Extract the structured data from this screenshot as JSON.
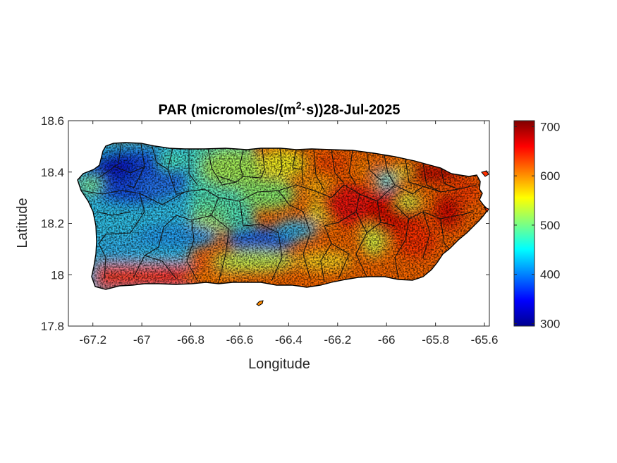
{
  "chart_data": {
    "type": "heatmap",
    "title": {
      "prefix": "PAR (micromoles/(m",
      "superscript": "2",
      "suffix": "·s))28-Jul-2025"
    },
    "xlabel": "Longitude",
    "ylabel": "Latitude",
    "xlim": [
      -67.3,
      -65.58
    ],
    "ylim": [
      17.8,
      18.6
    ],
    "xticks": [
      -67.2,
      -67,
      -66.8,
      -66.6,
      -66.4,
      -66.2,
      -66,
      -65.8,
      -65.6
    ],
    "xtick_labels": [
      "-67.2",
      "-67",
      "-66.8",
      "-66.6",
      "-66.4",
      "-66.2",
      "-66",
      "-65.8",
      "-65.6"
    ],
    "yticks": [
      17.8,
      18,
      18.2,
      18.4,
      18.6
    ],
    "ytick_labels": [
      "17.8",
      "18",
      "18.2",
      "18.4",
      "18.6"
    ],
    "colorbar": {
      "colormap": "jet",
      "range": [
        295,
        712
      ],
      "ticks": [
        300,
        400,
        500,
        600,
        700
      ],
      "tick_labels": [
        "300",
        "400",
        "500",
        "600",
        "700"
      ]
    },
    "region": "Puerto Rico",
    "overlay": "municipality boundaries",
    "colors": {
      "boundary": "#000000",
      "axis": "#262626"
    }
  }
}
